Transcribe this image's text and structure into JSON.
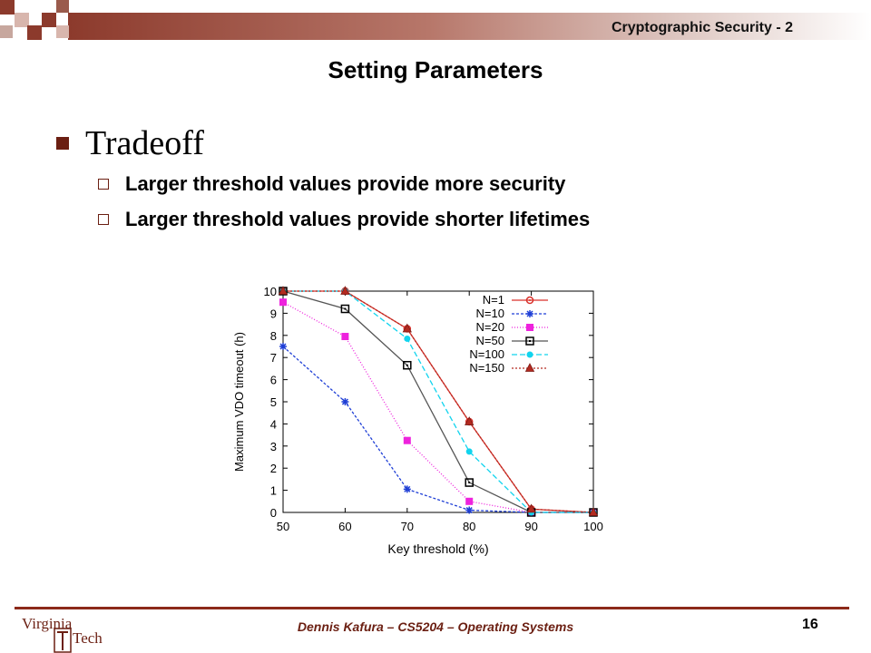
{
  "header": {
    "course_label": "Cryptographic Security - 2",
    "slide_title": "Setting Parameters"
  },
  "content": {
    "main_bullet": "Tradeoff",
    "sub_bullets": [
      "Larger threshold values provide more security",
      "Larger threshold values provide shorter lifetimes"
    ]
  },
  "footer": {
    "text": "Dennis Kafura – CS5204 – Operating Systems",
    "page_number": "16",
    "logo_text_top": "Virginia",
    "logo_text_bottom": "Tech"
  },
  "colors": {
    "maroon": "#6b1f12",
    "accent": "#8c2a1a"
  },
  "chart_data": {
    "type": "line",
    "xlabel": "Key threshold (%)",
    "ylabel": "Maximum VDO timeout (h)",
    "x": [
      50,
      60,
      70,
      80,
      90,
      100
    ],
    "xlim": [
      50,
      100
    ],
    "ylim": [
      0,
      10
    ],
    "xticks": [
      "50",
      "60",
      "70",
      "80",
      "90",
      "100"
    ],
    "yticks": [
      "0",
      "1",
      "2",
      "3",
      "4",
      "5",
      "6",
      "7",
      "8",
      "9",
      "10"
    ],
    "legend_position": "top-right",
    "series": [
      {
        "name": "N=1",
        "values": [
          10,
          10,
          8.3,
          4.1,
          0.15,
          0
        ],
        "color": "#d9302a",
        "marker": "circle-dot",
        "dash": "none"
      },
      {
        "name": "N=10",
        "values": [
          7.5,
          5.0,
          1.05,
          0.1,
          0,
          0
        ],
        "color": "#1f3fd6",
        "marker": "star",
        "dash": "3,2"
      },
      {
        "name": "N=20",
        "values": [
          9.5,
          7.95,
          3.25,
          0.5,
          0,
          0
        ],
        "color": "#ee22dd",
        "marker": "square",
        "dash": "1,2"
      },
      {
        "name": "N=50",
        "values": [
          10,
          9.2,
          6.65,
          1.35,
          0,
          0
        ],
        "color": "#555555",
        "marker": "hollow-square",
        "dash": "none"
      },
      {
        "name": "N=100",
        "values": [
          10,
          10,
          7.85,
          2.75,
          0,
          0
        ],
        "color": "#11d4ee",
        "marker": "circle",
        "dash": "6,3"
      },
      {
        "name": "N=150",
        "values": [
          10,
          10,
          8.3,
          4.1,
          0.15,
          0
        ],
        "color": "#b32a20",
        "marker": "triangle",
        "dash": "2,2"
      }
    ]
  }
}
